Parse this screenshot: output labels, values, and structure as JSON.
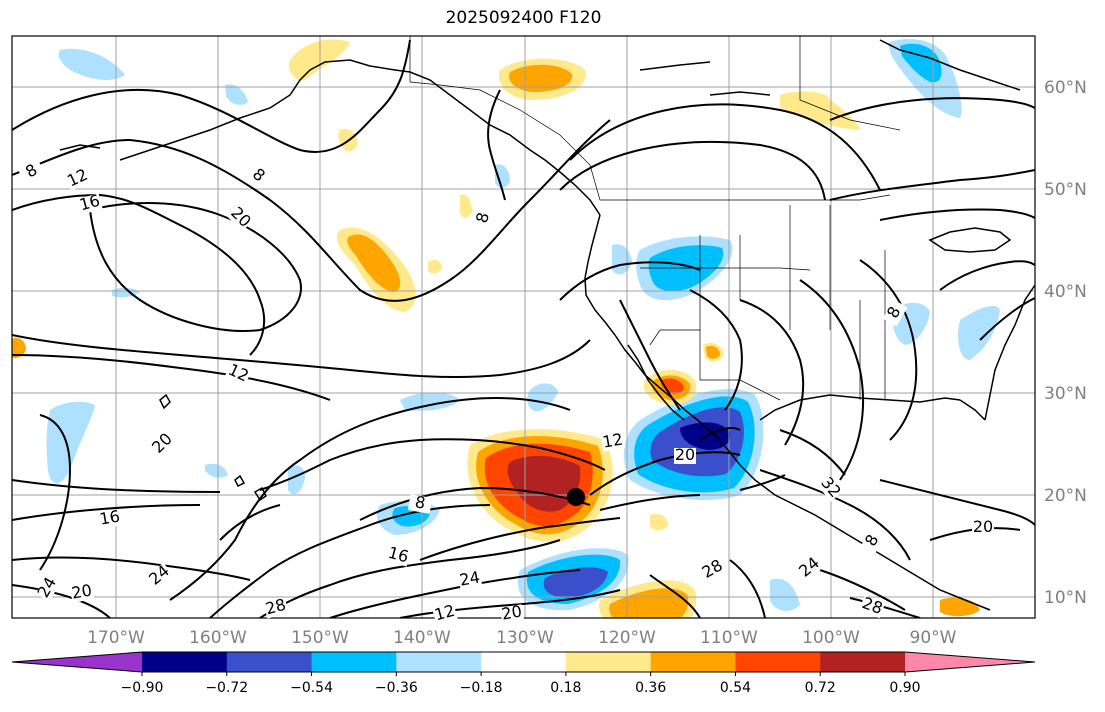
{
  "title": "2025092400 F120",
  "map": {
    "projection": "PlateCarree",
    "lon_range": [
      -180,
      -80
    ],
    "lat_range": [
      8,
      65
    ],
    "lat_ticks": [
      "60°N",
      "50°N",
      "40°N",
      "30°N",
      "20°N",
      "10°N"
    ],
    "lon_ticks": [
      "170°W",
      "160°W",
      "150°W",
      "140°W",
      "130°W",
      "120°W",
      "110°W",
      "100°W",
      "90°W"
    ],
    "contour_labels": [
      "8",
      "12",
      "16",
      "20",
      "8",
      "8",
      "12",
      "20",
      "16",
      "24",
      "20",
      "28",
      "24",
      "16",
      "8",
      "20",
      "24",
      "12",
      "20",
      "32",
      "28",
      "24",
      "28",
      "20",
      "8",
      "8",
      "12"
    ],
    "marker": "center-dot"
  },
  "colorbar": {
    "colors": [
      "#9933cc",
      "#00008b",
      "#3a4fcc",
      "#00bfff",
      "#aee0ff",
      "#ffffff",
      "#ffe98a",
      "#ffa500",
      "#ff4500",
      "#b22222",
      "#ff88aa"
    ],
    "tick_labels": [
      "−0.90",
      "−0.72",
      "−0.54",
      "−0.36",
      "−0.18",
      "0.18",
      "0.36",
      "0.54",
      "0.72",
      "0.90"
    ]
  }
}
